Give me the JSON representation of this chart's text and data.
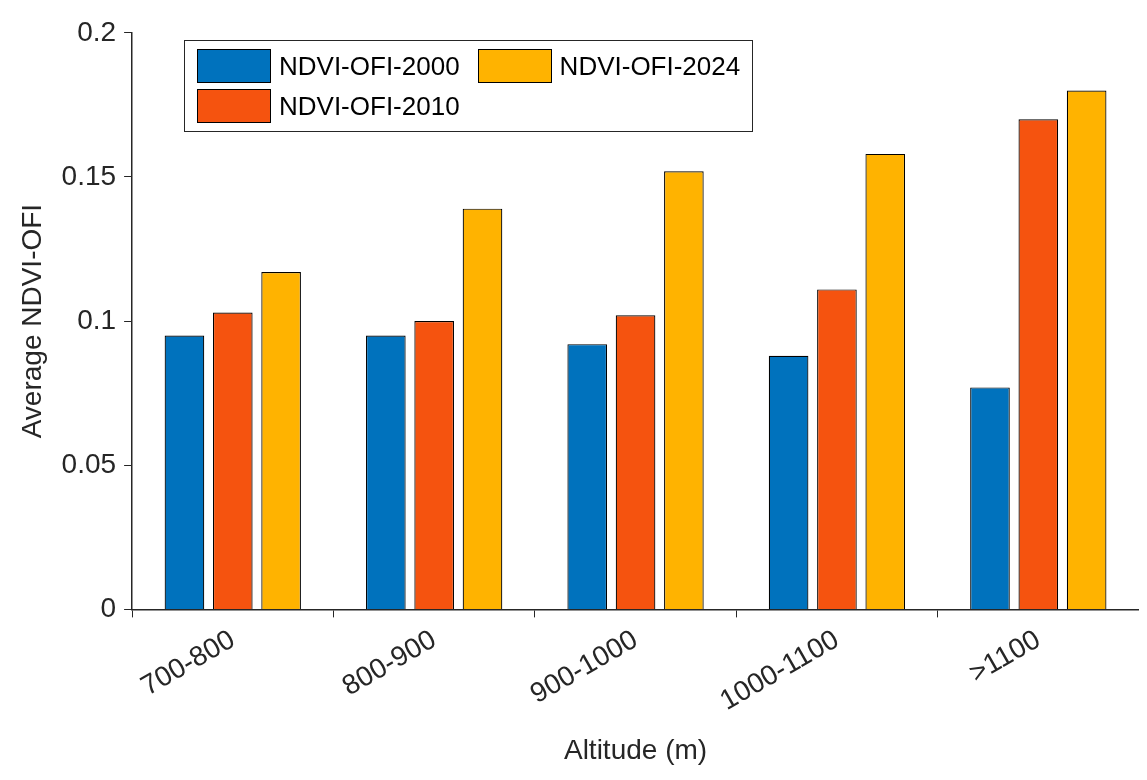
{
  "chart_data": {
    "type": "bar",
    "xlabel": "Altitude (m)",
    "ylabel": "Average NDVI-OFI",
    "categories": [
      "700-800",
      "800-900",
      "900-1000",
      "1000-1100",
      ">1100"
    ],
    "series": [
      {
        "name": "NDVI-OFI-2000",
        "color": "#0072bd",
        "values": [
          0.095,
          0.095,
          0.092,
          0.088,
          0.077
        ]
      },
      {
        "name": "NDVI-OFI-2010",
        "color": "#f5530f",
        "values": [
          0.103,
          0.1,
          0.102,
          0.111,
          0.17
        ]
      },
      {
        "name": "NDVI-OFI-2024",
        "color": "#ffb300",
        "values": [
          0.117,
          0.139,
          0.152,
          0.158,
          0.18
        ]
      }
    ],
    "ylim": [
      0,
      0.2
    ],
    "yticks": [
      0,
      0.05,
      0.1,
      0.15,
      0.2
    ],
    "grid": false,
    "legend": "top left"
  }
}
